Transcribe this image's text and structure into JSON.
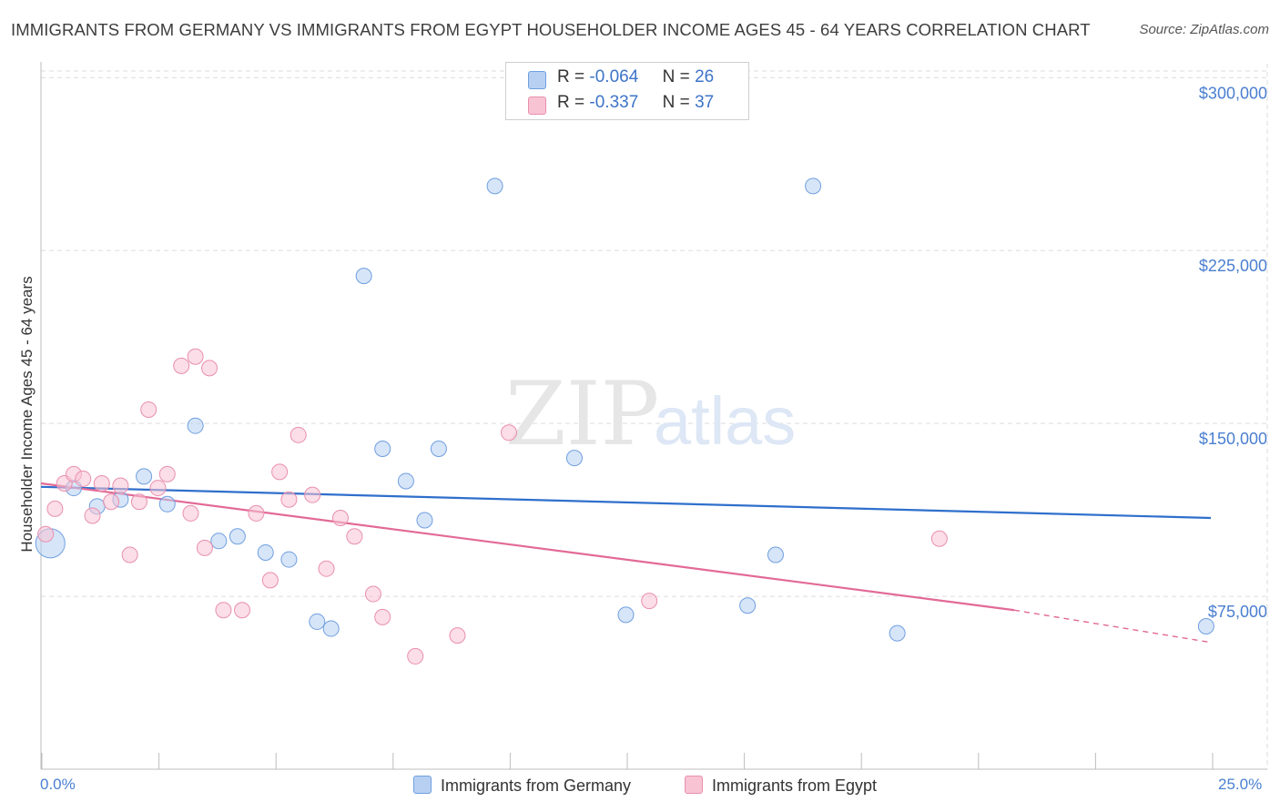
{
  "title": "IMMIGRANTS FROM GERMANY VS IMMIGRANTS FROM EGYPT HOUSEHOLDER INCOME AGES 45 - 64 YEARS CORRELATION CHART",
  "source": "Source: ZipAtlas.com",
  "watermark": {
    "zip": "ZIP",
    "atlas": "atlas"
  },
  "legend": {
    "germany": {
      "r_label": "R =",
      "r_value": "-0.064",
      "n_label": "N =",
      "n_value": "26"
    },
    "egypt": {
      "r_label": "R =",
      "r_value": "-0.337",
      "n_label": "N =",
      "n_value": "37"
    }
  },
  "colors": {
    "germany_fill": "#b7d0f2",
    "germany_stroke": "#6f9fe0",
    "germany_line": "#2f6fcc",
    "egypt_fill": "#f8c3d3",
    "egypt_stroke": "#e98fae",
    "egypt_line": "#e26a96",
    "grid": "#dddddd",
    "tick_label": "#4a7fd0"
  },
  "chart_data": {
    "type": "scatter",
    "title": "IMMIGRANTS FROM GERMANY VS IMMIGRANTS FROM EGYPT HOUSEHOLDER INCOME AGES 45 - 64 YEARS CORRELATION CHART",
    "xlabel": "",
    "ylabel": "Householder Income Ages 45 - 64 years",
    "xlim": [
      0,
      25
    ],
    "ylim": [
      0,
      310000
    ],
    "x_tick_labels": [
      "0.0%",
      "25.0%"
    ],
    "y_ticks": [
      75000,
      150000,
      225000,
      300000
    ],
    "y_tick_labels": [
      "$75,000",
      "$150,000",
      "$225,000",
      "$300,000"
    ],
    "grid": true,
    "legend_position": "top-center",
    "series": [
      {
        "name": "Immigrants from Germany",
        "points": [
          {
            "x": 0.2,
            "y": 98000,
            "big": true
          },
          {
            "x": 0.7,
            "y": 122000
          },
          {
            "x": 1.2,
            "y": 114000
          },
          {
            "x": 1.7,
            "y": 117000
          },
          {
            "x": 2.2,
            "y": 127000
          },
          {
            "x": 2.7,
            "y": 115000
          },
          {
            "x": 3.3,
            "y": 149000
          },
          {
            "x": 3.8,
            "y": 99000
          },
          {
            "x": 4.2,
            "y": 101000
          },
          {
            "x": 4.8,
            "y": 94000
          },
          {
            "x": 5.3,
            "y": 91000
          },
          {
            "x": 5.9,
            "y": 64000
          },
          {
            "x": 6.2,
            "y": 61000
          },
          {
            "x": 6.9,
            "y": 214000
          },
          {
            "x": 7.3,
            "y": 139000
          },
          {
            "x": 7.8,
            "y": 125000
          },
          {
            "x": 8.2,
            "y": 108000
          },
          {
            "x": 8.5,
            "y": 139000
          },
          {
            "x": 9.7,
            "y": 253000
          },
          {
            "x": 11.4,
            "y": 135000
          },
          {
            "x": 12.5,
            "y": 67000
          },
          {
            "x": 15.1,
            "y": 71000
          },
          {
            "x": 15.7,
            "y": 93000
          },
          {
            "x": 16.5,
            "y": 253000
          },
          {
            "x": 18.3,
            "y": 59000
          },
          {
            "x": 24.9,
            "y": 62000
          }
        ],
        "trend": {
          "x": [
            0,
            25
          ],
          "y": [
            122500,
            109000
          ]
        }
      },
      {
        "name": "Immigrants from Egypt",
        "points": [
          {
            "x": 0.1,
            "y": 102000
          },
          {
            "x": 0.3,
            "y": 113000
          },
          {
            "x": 0.5,
            "y": 124000
          },
          {
            "x": 0.7,
            "y": 128000
          },
          {
            "x": 0.9,
            "y": 126000
          },
          {
            "x": 1.1,
            "y": 110000
          },
          {
            "x": 1.3,
            "y": 124000
          },
          {
            "x": 1.5,
            "y": 116000
          },
          {
            "x": 1.7,
            "y": 123000
          },
          {
            "x": 1.9,
            "y": 93000
          },
          {
            "x": 2.1,
            "y": 116000
          },
          {
            "x": 2.3,
            "y": 156000
          },
          {
            "x": 2.5,
            "y": 122000
          },
          {
            "x": 2.7,
            "y": 128000
          },
          {
            "x": 3.0,
            "y": 175000
          },
          {
            "x": 3.2,
            "y": 111000
          },
          {
            "x": 3.3,
            "y": 179000
          },
          {
            "x": 3.5,
            "y": 96000
          },
          {
            "x": 3.6,
            "y": 174000
          },
          {
            "x": 3.9,
            "y": 69000
          },
          {
            "x": 4.3,
            "y": 69000
          },
          {
            "x": 4.6,
            "y": 111000
          },
          {
            "x": 4.9,
            "y": 82000
          },
          {
            "x": 5.1,
            "y": 129000
          },
          {
            "x": 5.3,
            "y": 117000
          },
          {
            "x": 5.5,
            "y": 145000
          },
          {
            "x": 5.8,
            "y": 119000
          },
          {
            "x": 6.1,
            "y": 87000
          },
          {
            "x": 6.4,
            "y": 109000
          },
          {
            "x": 6.7,
            "y": 101000
          },
          {
            "x": 7.1,
            "y": 76000
          },
          {
            "x": 7.3,
            "y": 66000
          },
          {
            "x": 8.0,
            "y": 49000
          },
          {
            "x": 8.9,
            "y": 58000
          },
          {
            "x": 10.0,
            "y": 146000
          },
          {
            "x": 13.0,
            "y": 73000
          },
          {
            "x": 19.2,
            "y": 100000
          }
        ],
        "trend": {
          "x": [
            0,
            20.8
          ],
          "y": [
            124000,
            69000
          ]
        },
        "trend_extension": {
          "x": [
            20.8,
            25
          ],
          "y": [
            69000,
            55000
          ]
        }
      }
    ]
  }
}
